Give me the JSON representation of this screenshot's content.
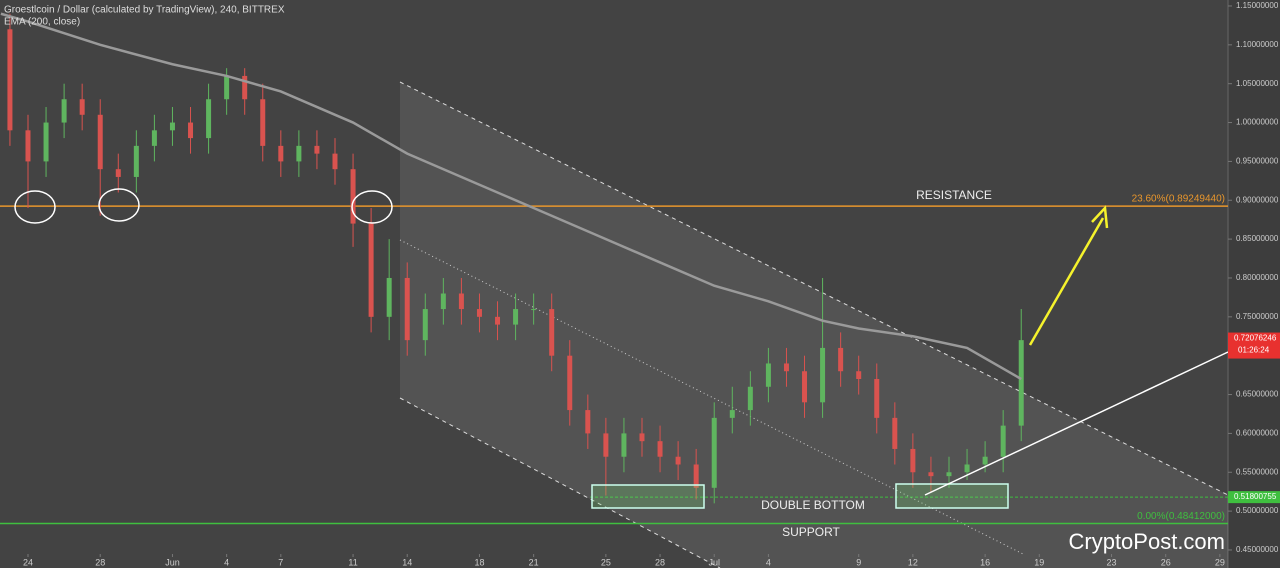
{
  "chart_data": {
    "type": "candlestick",
    "title": "Groestlcoin / Dollar (calculated by TradingView), 240, BITTREX",
    "indicator_label": "EMA (200, close)",
    "watermark": "CryptoPost.com",
    "xlim": [
      -1.55,
      66.45
    ],
    "xticks": [
      {
        "value": 0,
        "label": "24"
      },
      {
        "value": 4,
        "label": "28"
      },
      {
        "value": 8,
        "label": "Jun"
      },
      {
        "value": 11,
        "label": "4"
      },
      {
        "value": 14,
        "label": "7"
      },
      {
        "value": 18,
        "label": "11"
      },
      {
        "value": 21,
        "label": "14"
      },
      {
        "value": 25,
        "label": "18"
      },
      {
        "value": 28,
        "label": "21"
      },
      {
        "value": 32,
        "label": "25"
      },
      {
        "value": 35,
        "label": "28"
      },
      {
        "value": 38,
        "label": "Jul"
      },
      {
        "value": 41,
        "label": "4"
      },
      {
        "value": 46,
        "label": "9"
      },
      {
        "value": 49,
        "label": "12"
      },
      {
        "value": 53,
        "label": "16"
      },
      {
        "value": 56,
        "label": "19"
      },
      {
        "value": 60,
        "label": "23"
      },
      {
        "value": 63,
        "label": "26"
      },
      {
        "value": 66,
        "label": "29"
      }
    ],
    "ylim": [
      0.4268,
      1.1577
    ],
    "yticks": [
      {
        "value": 1.15,
        "label": "1.15000000"
      },
      {
        "value": 1.1,
        "label": "1.10000000"
      },
      {
        "value": 1.05,
        "label": "1.05000000"
      },
      {
        "value": 1.0,
        "label": "1.00000000"
      },
      {
        "value": 0.95,
        "label": "0.95000000"
      },
      {
        "value": 0.9,
        "label": "0.90000000"
      },
      {
        "value": 0.85,
        "label": "0.85000000"
      },
      {
        "value": 0.8,
        "label": "0.80000000"
      },
      {
        "value": 0.75,
        "label": "0.75000000"
      },
      {
        "value": 0.7,
        "label": "0.70000000"
      },
      {
        "value": 0.65,
        "label": "0.65000000"
      },
      {
        "value": 0.6,
        "label": "0.60000000"
      },
      {
        "value": 0.55,
        "label": "0.55000000"
      },
      {
        "value": 0.5,
        "label": "0.50000000"
      },
      {
        "value": 0.45,
        "label": "0.45000000"
      }
    ],
    "up_color": "#5fb55f",
    "down_color": "#d9534f",
    "x": [
      -1,
      0,
      1,
      2,
      3,
      4,
      5,
      6,
      7,
      8,
      9,
      10,
      11,
      12,
      13,
      14,
      15,
      16,
      17,
      18,
      19,
      20,
      21,
      22,
      23,
      24,
      25,
      26,
      27,
      28,
      29,
      30,
      31,
      32,
      33,
      34,
      35,
      36,
      37,
      38,
      39,
      40,
      41,
      42,
      43,
      44,
      45,
      46,
      47,
      48,
      49,
      50,
      51,
      52,
      53,
      54,
      55
    ],
    "open": [
      1.12,
      0.99,
      0.95,
      1.0,
      1.03,
      1.01,
      0.94,
      0.93,
      0.97,
      0.99,
      1.0,
      0.98,
      1.03,
      1.06,
      1.03,
      0.97,
      0.95,
      0.97,
      0.96,
      0.94,
      0.87,
      0.75,
      0.8,
      0.72,
      0.76,
      0.78,
      0.76,
      0.75,
      0.74,
      0.76,
      0.76,
      0.7,
      0.63,
      0.6,
      0.57,
      0.6,
      0.59,
      0.57,
      0.56,
      0.53,
      0.62,
      0.63,
      0.66,
      0.69,
      0.68,
      0.64,
      0.71,
      0.68,
      0.67,
      0.62,
      0.58,
      0.55,
      0.545,
      0.55,
      0.56,
      0.57,
      0.61
    ],
    "close": [
      0.99,
      0.95,
      1.0,
      1.03,
      1.01,
      0.94,
      0.93,
      0.97,
      0.99,
      1.0,
      0.98,
      1.03,
      1.06,
      1.03,
      0.97,
      0.95,
      0.97,
      0.96,
      0.94,
      0.87,
      0.75,
      0.8,
      0.72,
      0.76,
      0.78,
      0.76,
      0.75,
      0.74,
      0.76,
      0.76,
      0.7,
      0.63,
      0.6,
      0.57,
      0.6,
      0.59,
      0.57,
      0.56,
      0.53,
      0.62,
      0.63,
      0.66,
      0.69,
      0.68,
      0.64,
      0.71,
      0.68,
      0.67,
      0.62,
      0.58,
      0.55,
      0.545,
      0.55,
      0.56,
      0.57,
      0.61,
      0.72
    ],
    "high": [
      1.14,
      1.01,
      1.02,
      1.05,
      1.05,
      1.03,
      0.96,
      0.99,
      1.01,
      1.02,
      1.02,
      1.05,
      1.07,
      1.07,
      1.05,
      0.99,
      0.99,
      0.99,
      0.98,
      0.96,
      0.89,
      0.85,
      0.82,
      0.78,
      0.8,
      0.8,
      0.78,
      0.77,
      0.78,
      0.78,
      0.78,
      0.72,
      0.65,
      0.62,
      0.62,
      0.62,
      0.61,
      0.59,
      0.58,
      0.64,
      0.66,
      0.68,
      0.71,
      0.71,
      0.7,
      0.8,
      0.73,
      0.7,
      0.69,
      0.64,
      0.6,
      0.57,
      0.57,
      0.58,
      0.59,
      0.63,
      0.76
    ],
    "low": [
      0.97,
      0.89,
      0.93,
      0.98,
      0.99,
      0.88,
      0.91,
      0.91,
      0.95,
      0.97,
      0.96,
      0.96,
      1.01,
      1.01,
      0.95,
      0.93,
      0.93,
      0.94,
      0.92,
      0.84,
      0.73,
      0.72,
      0.7,
      0.7,
      0.74,
      0.74,
      0.73,
      0.72,
      0.72,
      0.74,
      0.68,
      0.61,
      0.58,
      0.52,
      0.55,
      0.57,
      0.55,
      0.54,
      0.515,
      0.51,
      0.6,
      0.61,
      0.64,
      0.66,
      0.62,
      0.62,
      0.66,
      0.65,
      0.6,
      0.56,
      0.53,
      0.525,
      0.53,
      0.54,
      0.55,
      0.55,
      0.59
    ],
    "ema": {
      "name": "EMA (200, close)",
      "color": "#9a9a9a",
      "x": [
        -1.5,
        0,
        4,
        8,
        11,
        14,
        18,
        21,
        25,
        28,
        32,
        35,
        38,
        41,
        44,
        46,
        49,
        52,
        55
      ],
      "values": [
        1.14,
        1.13,
        1.1,
        1.075,
        1.06,
        1.04,
        1.0,
        0.96,
        0.92,
        0.89,
        0.85,
        0.82,
        0.79,
        0.77,
        0.745,
        0.735,
        0.725,
        0.71,
        0.67
      ]
    },
    "levels": [
      {
        "value": 0.8924944,
        "label": "23.60%(0.89249440)",
        "color": "#e8962c"
      },
      {
        "value": 0.48412,
        "label": "0.00%(0.48412000)",
        "color": "#3fbf3f"
      }
    ],
    "double_bottom_level": {
      "value": 0.51800755,
      "label": "0.51800755",
      "color": "#3fbf3f"
    },
    "last_price": {
      "value": 0.72076246,
      "label": "0.72076246",
      "timer": "01:26:24",
      "color": "#e8312f"
    },
    "annotations": [
      "RESISTANCE",
      "DOUBLE BOTTOM",
      "SUPPORT"
    ]
  }
}
